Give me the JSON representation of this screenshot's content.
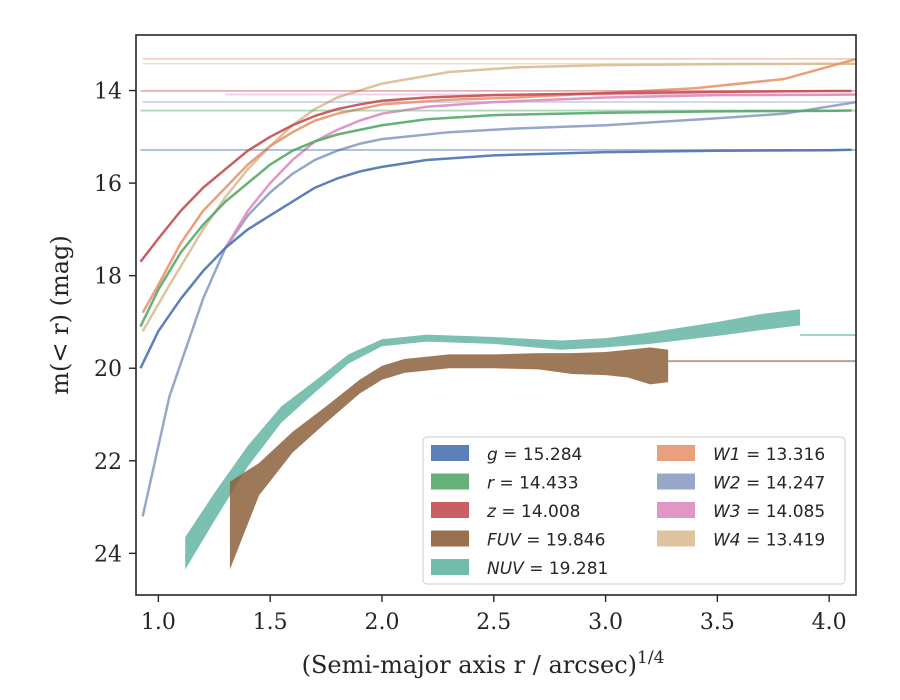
{
  "chart_data": {
    "type": "line",
    "xlabel": "(Semi-major axis r / arcsec)",
    "xlabel_power": "1/4",
    "ylabel": "m(< r) (mag)",
    "xlim": [
      0.9,
      4.12
    ],
    "ylim": [
      24.9,
      12.8
    ],
    "y_inverted": true,
    "grid": false,
    "legend_placement": "lower-right",
    "xticks": [
      "1.0",
      "1.5",
      "2.0",
      "2.5",
      "3.0",
      "3.5",
      "4.0"
    ],
    "yticks": [
      "14",
      "16",
      "18",
      "20",
      "22",
      "24"
    ],
    "series": [
      {
        "band": "g",
        "value": "15.284",
        "color": "#4c72b0",
        "x": [
          0.92,
          1.0,
          1.1,
          1.2,
          1.3,
          1.4,
          1.5,
          1.6,
          1.7,
          1.8,
          1.9,
          2.0,
          2.2,
          2.5,
          3.0,
          3.5,
          4.0,
          4.1
        ],
        "y": [
          20.0,
          19.2,
          18.5,
          17.9,
          17.4,
          17.0,
          16.7,
          16.4,
          16.1,
          15.9,
          15.75,
          15.65,
          15.5,
          15.4,
          15.33,
          15.3,
          15.29,
          15.28
        ]
      },
      {
        "band": "r",
        "value": "14.433",
        "color": "#55a868",
        "x": [
          0.92,
          1.0,
          1.1,
          1.2,
          1.3,
          1.4,
          1.5,
          1.6,
          1.7,
          1.8,
          1.9,
          2.0,
          2.2,
          2.5,
          3.0,
          3.5,
          4.0,
          4.1
        ],
        "y": [
          19.1,
          18.3,
          17.5,
          16.9,
          16.4,
          16.0,
          15.6,
          15.3,
          15.1,
          14.95,
          14.85,
          14.75,
          14.62,
          14.53,
          14.48,
          14.45,
          14.44,
          14.43
        ]
      },
      {
        "band": "z",
        "value": "14.008",
        "color": "#c44e52",
        "x": [
          0.92,
          1.0,
          1.1,
          1.2,
          1.3,
          1.4,
          1.5,
          1.6,
          1.7,
          1.8,
          1.9,
          2.0,
          2.2,
          2.5,
          3.0,
          3.5,
          4.0,
          4.1
        ],
        "y": [
          17.7,
          17.2,
          16.6,
          16.1,
          15.7,
          15.3,
          15.0,
          14.75,
          14.55,
          14.4,
          14.3,
          14.22,
          14.15,
          14.1,
          14.06,
          14.03,
          14.01,
          14.01
        ]
      },
      {
        "band": "FUV",
        "value": "19.846",
        "color": "#8c613c",
        "band_fill": true,
        "x": [
          1.32,
          1.45,
          1.6,
          1.75,
          1.9,
          2.0,
          2.1,
          2.3,
          2.5,
          2.7,
          2.85,
          3.0,
          3.1,
          3.2,
          3.28
        ],
        "y": [
          23.4,
          22.4,
          21.6,
          21.0,
          20.4,
          20.1,
          19.95,
          19.85,
          19.85,
          19.85,
          19.9,
          19.9,
          19.9,
          19.95,
          19.95
        ],
        "spread": [
          1.9,
          0.7,
          0.45,
          0.35,
          0.3,
          0.3,
          0.3,
          0.3,
          0.3,
          0.35,
          0.45,
          0.5,
          0.6,
          0.8,
          0.7
        ]
      },
      {
        "band": "NUV",
        "value": "19.281",
        "color": "#64b5a2",
        "band_fill": true,
        "x": [
          1.12,
          1.25,
          1.4,
          1.55,
          1.7,
          1.85,
          2.0,
          2.2,
          2.5,
          2.8,
          3.0,
          3.2,
          3.5,
          3.7,
          3.87
        ],
        "y": [
          24.0,
          23.0,
          21.9,
          21.0,
          20.4,
          19.8,
          19.45,
          19.35,
          19.4,
          19.5,
          19.45,
          19.35,
          19.15,
          19.0,
          18.9
        ],
        "spread": [
          0.7,
          0.6,
          0.45,
          0.35,
          0.25,
          0.2,
          0.15,
          0.15,
          0.15,
          0.2,
          0.2,
          0.25,
          0.3,
          0.35,
          0.35
        ]
      },
      {
        "band": "W1",
        "value": "13.316",
        "color": "#e8956f",
        "x": [
          0.93,
          1.0,
          1.1,
          1.2,
          1.3,
          1.4,
          1.5,
          1.6,
          1.7,
          1.8,
          2.0,
          2.3,
          2.6,
          3.0,
          3.4,
          3.8,
          4.12
        ],
        "y": [
          18.8,
          18.2,
          17.3,
          16.6,
          16.1,
          15.6,
          15.2,
          14.9,
          14.65,
          14.5,
          14.3,
          14.2,
          14.15,
          14.05,
          13.95,
          13.75,
          13.32
        ]
      },
      {
        "band": "W2",
        "value": "14.247",
        "color": "#8c9dc4",
        "x": [
          0.93,
          1.05,
          1.2,
          1.3,
          1.4,
          1.5,
          1.6,
          1.7,
          1.8,
          1.9,
          2.0,
          2.3,
          2.6,
          3.0,
          3.5,
          3.8,
          4.12
        ],
        "y": [
          23.2,
          20.6,
          18.5,
          17.4,
          16.7,
          16.2,
          15.8,
          15.5,
          15.3,
          15.15,
          15.05,
          14.9,
          14.82,
          14.75,
          14.6,
          14.5,
          14.25
        ]
      },
      {
        "band": "W3",
        "value": "14.085",
        "color": "#dd8cc0",
        "x": [
          1.3,
          1.4,
          1.5,
          1.6,
          1.7,
          1.8,
          1.9,
          2.0,
          2.2,
          2.5,
          3.0,
          3.5,
          4.0,
          4.12
        ],
        "y": [
          17.4,
          16.6,
          16.0,
          15.5,
          15.1,
          14.85,
          14.65,
          14.5,
          14.35,
          14.25,
          14.15,
          14.1,
          14.09,
          14.085
        ]
      },
      {
        "band": "W4",
        "value": "13.419",
        "color": "#d9bc93",
        "x": [
          0.93,
          1.05,
          1.2,
          1.3,
          1.4,
          1.5,
          1.6,
          1.7,
          1.8,
          2.0,
          2.3,
          2.6,
          3.0,
          3.5,
          4.0,
          4.12
        ],
        "y": [
          19.2,
          18.2,
          17.0,
          16.3,
          15.7,
          15.2,
          14.75,
          14.4,
          14.15,
          13.85,
          13.6,
          13.5,
          13.45,
          13.43,
          13.42,
          13.42
        ]
      }
    ]
  }
}
